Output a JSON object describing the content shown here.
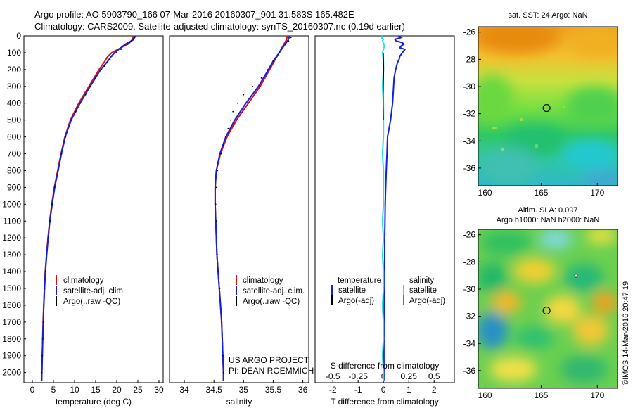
{
  "header": {
    "line1": "Argo profile: AO 5903790_166 07-Mar-2016 20160307_901 31.583S 165.482E",
    "line2": "Climatology: CARS2009. Satellite-adjusted climatology: synTS_20160307.nc (0.19d earlier)"
  },
  "depth_ticks": [
    "0",
    "100",
    "200",
    "300",
    "400",
    "500",
    "600",
    "700",
    "800",
    "900",
    "1000",
    "1100",
    "1200",
    "1300",
    "1400",
    "1500",
    "1600",
    "1700",
    "1800",
    "1900",
    "2000"
  ],
  "colors": {
    "climatology": "#e01010",
    "satellite": "#1020e0",
    "argo": "#000000",
    "sat_sal": "#30e0e0",
    "argo_sal_adj": "#e020e0"
  },
  "chart_data": [
    {
      "type": "line",
      "id": "temperature",
      "xlabel": "temperature (deg C)",
      "ylabel": "depth",
      "xlim": [
        -2,
        31
      ],
      "ylim": [
        2060,
        0
      ],
      "xticks": [
        0,
        5,
        10,
        15,
        20,
        25,
        30
      ],
      "xtick_labels": [
        "0",
        "5",
        "10",
        "15",
        "20",
        "25",
        "30"
      ],
      "legend": [
        "climatology",
        "satellite-adj. clim.",
        "Argo(..raw -QC)"
      ],
      "series": [
        {
          "name": "climatology",
          "depth": [
            0,
            25,
            50,
            100,
            125,
            150,
            200,
            300,
            400,
            500,
            600,
            700,
            800,
            900,
            1000,
            1100,
            1200,
            1300,
            1400,
            1500,
            1600,
            1700,
            1800,
            1900,
            2000,
            2050
          ],
          "values": [
            24.0,
            23.6,
            22.5,
            18.8,
            17.8,
            17.2,
            15.8,
            13.4,
            11.0,
            9.0,
            7.7,
            6.8,
            6.0,
            5.2,
            4.6,
            4.1,
            3.7,
            3.35,
            3.05,
            2.85,
            2.7,
            2.55,
            2.45,
            2.35,
            2.25,
            2.2
          ]
        },
        {
          "name": "satellite-adj. clim.",
          "depth": [
            0,
            25,
            50,
            100,
            125,
            150,
            200,
            300,
            400,
            500,
            600,
            700,
            800,
            900,
            1000,
            1100,
            1200,
            1300,
            1400,
            1500,
            1600,
            1700,
            1800,
            1900,
            2000,
            2050
          ],
          "values": [
            24.5,
            23.8,
            22.0,
            19.5,
            18.6,
            17.9,
            16.2,
            13.7,
            11.3,
            9.2,
            7.8,
            6.9,
            6.1,
            5.3,
            4.7,
            4.15,
            3.75,
            3.4,
            3.1,
            2.9,
            2.72,
            2.58,
            2.46,
            2.36,
            2.26,
            2.21
          ]
        },
        {
          "name": "Argo(..raw -QC)",
          "depth": [
            10,
            20,
            30,
            40,
            50,
            60,
            80,
            100,
            120,
            140,
            160,
            180,
            200,
            250,
            300,
            350,
            400,
            450,
            500,
            600,
            700,
            800,
            900,
            1000,
            1100,
            1200,
            1300,
            1400,
            1500,
            1600,
            1700,
            1800,
            1900,
            2000
          ],
          "values": [
            24.2,
            23.9,
            23.5,
            23.1,
            22.6,
            22.0,
            21.0,
            20.0,
            19.0,
            18.4,
            17.8,
            17.1,
            16.4,
            15.0,
            13.8,
            12.6,
            11.4,
            10.3,
            9.3,
            7.9,
            6.9,
            6.1,
            5.3,
            4.7,
            4.15,
            3.72,
            3.38,
            3.08,
            2.87,
            2.71,
            2.57,
            2.45,
            2.35,
            2.26
          ]
        }
      ]
    },
    {
      "type": "line",
      "id": "salinity",
      "xlabel": "salinity",
      "ylabel": "depth",
      "xlim": [
        33.75,
        36.1
      ],
      "ylim": [
        2060,
        0
      ],
      "xticks": [
        34,
        34.5,
        35,
        35.5,
        36
      ],
      "xtick_labels": [
        "34",
        "34.5",
        "35",
        "35.5",
        "36"
      ],
      "legend": [
        "climatology",
        "satellite-adj. clim.",
        "Argo(..raw -QC)"
      ],
      "annotation": [
        "US ARGO PROJECT",
        "PI: DEAN ROEMMICH"
      ],
      "series": [
        {
          "name": "climatology",
          "depth": [
            0,
            25,
            50,
            100,
            150,
            200,
            300,
            400,
            500,
            600,
            700,
            800,
            900,
            1000,
            1100,
            1200,
            1300,
            1400,
            1500,
            1600,
            1700,
            1800,
            1900,
            2000,
            2050
          ],
          "values": [
            35.74,
            35.72,
            35.68,
            35.6,
            35.52,
            35.44,
            35.28,
            35.08,
            34.88,
            34.72,
            34.61,
            34.54,
            34.52,
            34.52,
            34.53,
            34.54,
            34.55,
            34.57,
            34.59,
            34.61,
            34.63,
            34.64,
            34.65,
            34.66,
            34.66
          ]
        },
        {
          "name": "satellite-adj. clim.",
          "depth": [
            0,
            25,
            50,
            100,
            150,
            200,
            300,
            400,
            500,
            600,
            700,
            800,
            900,
            1000,
            1100,
            1200,
            1300,
            1400,
            1500,
            1600,
            1700,
            1800,
            1900,
            2000,
            2050
          ],
          "values": [
            35.78,
            35.75,
            35.7,
            35.6,
            35.5,
            35.42,
            35.25,
            35.04,
            34.85,
            34.7,
            34.6,
            34.54,
            34.52,
            34.52,
            34.53,
            34.54,
            34.55,
            34.57,
            34.59,
            34.61,
            34.63,
            34.64,
            34.65,
            34.66,
            34.66
          ]
        },
        {
          "name": "Argo(..raw -QC)",
          "depth": [
            10,
            30,
            50,
            100,
            150,
            200,
            250,
            300,
            350,
            400,
            450,
            500,
            550,
            600,
            650,
            700,
            750,
            800,
            900,
            1000,
            1100,
            1200,
            1300,
            1400,
            1500,
            1600,
            1700,
            1800,
            1900,
            2000
          ],
          "values": [
            35.8,
            35.76,
            35.71,
            35.61,
            35.5,
            35.4,
            35.3,
            35.15,
            35.0,
            34.9,
            34.82,
            34.78,
            34.74,
            34.7,
            34.66,
            34.62,
            34.59,
            34.56,
            34.54,
            34.53,
            34.54,
            34.55,
            34.56,
            34.58,
            34.6,
            34.61,
            34.63,
            34.64,
            34.65,
            34.66
          ]
        }
      ]
    },
    {
      "type": "line",
      "id": "difference",
      "xlabel": "T difference from climatology",
      "title_bottom": "S difference from climatology",
      "xlim": [
        -2.7,
        2.8
      ],
      "ylim": [
        2060,
        0
      ],
      "t_xticks": [
        -2,
        -1,
        0,
        1,
        2
      ],
      "t_xtick_labels": [
        "-2",
        "-1",
        "0",
        "1",
        "2"
      ],
      "s_xticks": [
        -0.5,
        -0.25,
        0,
        0.25,
        0.5
      ],
      "s_xtick_labels": [
        "-0.5",
        "-0.25",
        "0",
        "0.25",
        "0.5"
      ],
      "legend": {
        "temperature_header": "temperature",
        "salinity_header": "salinity",
        "t_items": [
          "satellite",
          "Argo(-adj)"
        ],
        "s_items": [
          "satellite",
          "Argo(-adj)"
        ]
      },
      "series": [
        {
          "name": "T satellite",
          "depth": [
            0,
            10,
            20,
            30,
            40,
            50,
            60,
            70,
            80,
            100,
            120,
            140,
            160,
            200,
            250,
            300,
            400,
            500,
            600,
            700,
            800,
            900,
            1000,
            1100,
            1200,
            1300,
            1400,
            1500,
            1600,
            1700,
            1800,
            1900,
            2000,
            2050
          ],
          "values": [
            0.6,
            0.7,
            0.45,
            0.5,
            0.75,
            0.8,
            0.7,
            0.65,
            0.85,
            0.75,
            0.65,
            0.62,
            0.55,
            0.48,
            0.42,
            0.4,
            0.36,
            0.28,
            0.16,
            0.14,
            0.11,
            0.09,
            0.07,
            0.06,
            0.05,
            0.05,
            0.04,
            0.04,
            0.03,
            0.03,
            0.02,
            0.02,
            0.02,
            0.02
          ]
        },
        {
          "name": "T Argo(-adj)",
          "depth": [
            100,
            200,
            300,
            400,
            500
          ],
          "values": [
            0.0,
            0.01,
            0.0,
            -0.01,
            0.0
          ]
        },
        {
          "name": "S satellite",
          "depth": [
            0,
            10,
            20,
            30,
            40,
            60,
            80,
            100,
            150,
            200,
            300,
            400,
            500,
            600,
            700,
            800,
            900,
            1000,
            1100,
            1200,
            1300,
            1400,
            1500,
            1600,
            1700,
            1800,
            1900,
            2000,
            2050
          ],
          "values": [
            -0.01,
            -0.02,
            0.0,
            -0.01,
            0.0,
            0.01,
            0.0,
            -0.01,
            0.0,
            0.0,
            -0.01,
            0.0,
            0.0,
            0.0,
            -0.01,
            0.0,
            0.0,
            0.0,
            -0.01,
            0.0,
            -0.01,
            0.0,
            0.0,
            -0.01,
            0.0,
            0.0,
            -0.01,
            0.0,
            0.0
          ]
        }
      ]
    },
    {
      "type": "heatmap",
      "id": "sst_map",
      "title": "sat. SST: 24 Argo: NaN",
      "xlim": [
        159.4,
        171.8
      ],
      "ylim": [
        -37.3,
        -25.6
      ],
      "xticks": [
        160,
        165,
        170
      ],
      "xtick_labels": [
        "160",
        "165",
        "170"
      ],
      "yticks": [
        -26,
        -28,
        -30,
        -32,
        -34,
        -36
      ],
      "ytick_labels": [
        "-26",
        "-28",
        "-30",
        "-32",
        "-34",
        "-36"
      ],
      "float_position": [
        165.482,
        -31.583
      ]
    },
    {
      "type": "heatmap",
      "id": "sla_map",
      "title": "Altim. SLA: 0.097",
      "subtitle": "Argo h1000: NaN h2000: NaN",
      "xlim": [
        159.4,
        171.8
      ],
      "ylim": [
        -37.3,
        -25.6
      ],
      "xticks": [
        160,
        165,
        170
      ],
      "xtick_labels": [
        "160",
        "165",
        "170"
      ],
      "yticks": [
        -26,
        -28,
        -30,
        -32,
        -34,
        -36
      ],
      "ytick_labels": [
        "-26",
        "-28",
        "-30",
        "-32",
        "-34",
        "-36"
      ],
      "float_position": [
        165.482,
        -31.583
      ]
    }
  ],
  "footer": {
    "stamp": "©IMOS 14-Mar-2016 20:47:19"
  }
}
